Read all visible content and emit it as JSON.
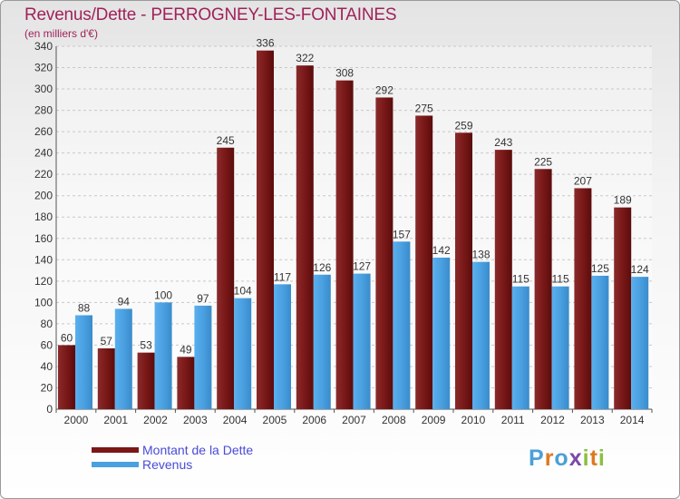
{
  "colors": {
    "title": "#a0225a",
    "debt": "#7a1818",
    "revenue": "#4aa0e0",
    "legend_text": "#4a4ad8"
  },
  "logo": {
    "text": "Proxiti"
  },
  "chart_data": {
    "type": "bar",
    "title": "Revenus/Dette - PERROGNEY-LES-FONTAINES",
    "subtitle": "(en milliers d'€)",
    "xlabel": "",
    "ylabel": "",
    "ylim": [
      0,
      340
    ],
    "yticks": [
      0,
      20,
      40,
      60,
      80,
      100,
      120,
      140,
      160,
      180,
      200,
      220,
      240,
      260,
      280,
      300,
      320,
      340
    ],
    "grid": true,
    "legend_position": "bottom-left",
    "categories": [
      "2000",
      "2001",
      "2002",
      "2003",
      "2004",
      "2005",
      "2006",
      "2007",
      "2008",
      "2009",
      "2010",
      "2011",
      "2012",
      "2013",
      "2014"
    ],
    "series": [
      {
        "name": "Montant de la Dette",
        "values": [
          60,
          57,
          53,
          49,
          245,
          336,
          322,
          308,
          292,
          275,
          259,
          243,
          225,
          207,
          189
        ]
      },
      {
        "name": "Revenus",
        "values": [
          88,
          94,
          100,
          97,
          104,
          117,
          126,
          127,
          157,
          142,
          138,
          115,
          115,
          125,
          124
        ]
      }
    ]
  }
}
